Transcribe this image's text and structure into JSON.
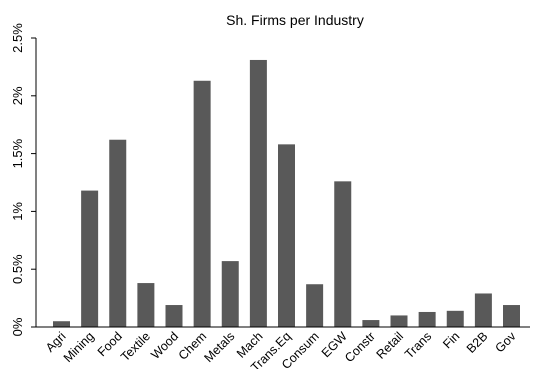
{
  "chart_data": {
    "type": "bar",
    "title": "Sh. Firms per Industry",
    "xlabel": "",
    "ylabel": "",
    "categories": [
      "Agri",
      "Mining",
      "Food",
      "Textile",
      "Wood",
      "Chem",
      "Metals",
      "Mach",
      "Trans.Eq",
      "Consum",
      "EGW",
      "Constr",
      "Retail",
      "Trans",
      "Fin",
      "B2B",
      "Gov"
    ],
    "values": [
      0.05,
      1.18,
      1.62,
      0.38,
      0.19,
      2.13,
      0.57,
      2.31,
      1.58,
      0.37,
      1.26,
      0.06,
      0.1,
      0.13,
      0.14,
      0.29,
      0.19
    ],
    "ylim": [
      0,
      2.5
    ],
    "yticks": [
      {
        "value": 0,
        "label": "0%"
      },
      {
        "value": 0.5,
        "label": "0.5%"
      },
      {
        "value": 1,
        "label": "1%"
      },
      {
        "value": 1.5,
        "label": "1.5%"
      },
      {
        "value": 2,
        "label": "2%"
      },
      {
        "value": 2.5,
        "label": "2.5%"
      }
    ],
    "grid": false,
    "legend": "none",
    "bar_color": "#595959"
  }
}
